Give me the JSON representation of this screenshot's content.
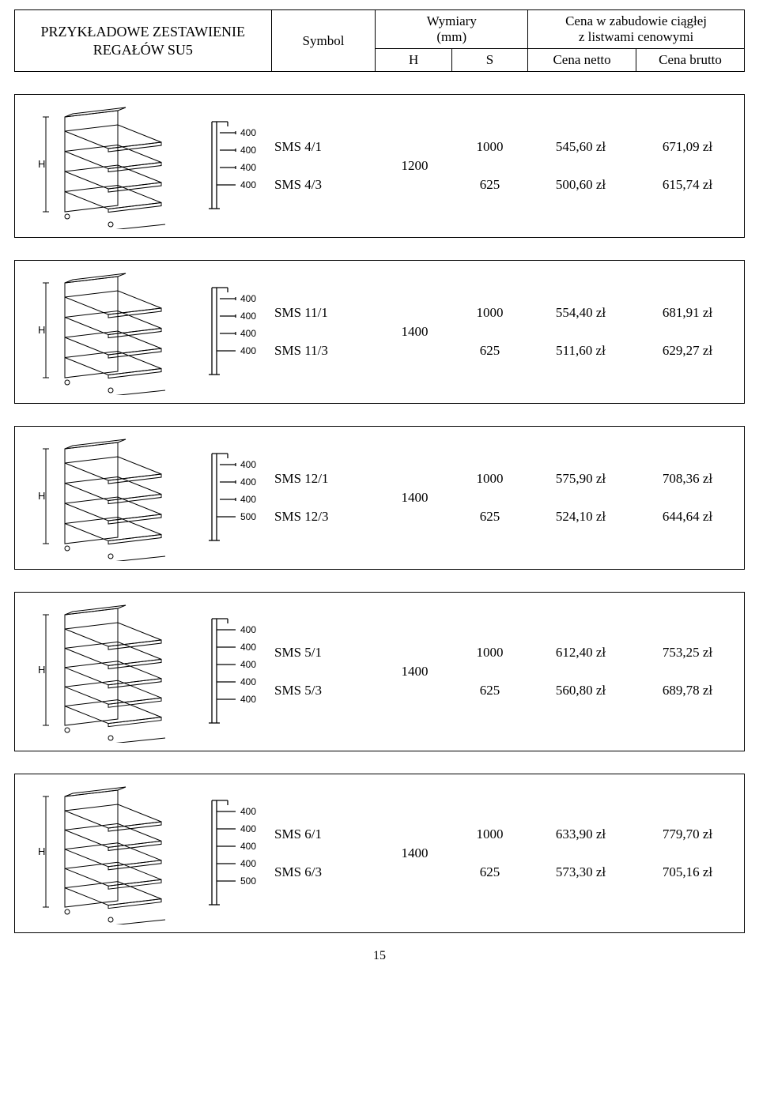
{
  "header": {
    "title_line1": "PRZYKŁADOWE ZESTAWIENIE",
    "title_line2": "REGAŁÓW SU5",
    "col_symbol": "Symbol",
    "col_dim": "Wymiary",
    "col_dim_unit": "(mm)",
    "col_price_line1": "Cena w zabudowie ciągłej",
    "col_price_line2": "z listwami cenowymi",
    "sub_H": "H",
    "sub_S": "S",
    "sub_netto": "Cena netto",
    "sub_brutto": "Cena brutto"
  },
  "rows": [
    {
      "shelves": 4,
      "schematic_labels": [
        "400",
        "400",
        "400",
        "400"
      ],
      "sym1": "SMS 4/1",
      "sym2": "SMS 4/3",
      "H": "1200",
      "S1": "1000",
      "S2": "625",
      "netto1": "545,60 zł",
      "netto2": "500,60 zł",
      "brutto1": "671,09 zł",
      "brutto2": "615,74 zł"
    },
    {
      "shelves": 4,
      "schematic_labels": [
        "400",
        "400",
        "400",
        "400"
      ],
      "sym1": "SMS 11/1",
      "sym2": "SMS 11/3",
      "H": "1400",
      "S1": "1000",
      "S2": "625",
      "netto1": "554,40 zł",
      "netto2": "511,60 zł",
      "brutto1": "681,91 zł",
      "brutto2": "629,27 zł"
    },
    {
      "shelves": 4,
      "schematic_labels": [
        "400",
        "400",
        "400",
        "500"
      ],
      "sym1": "SMS 12/1",
      "sym2": "SMS 12/3",
      "H": "1400",
      "S1": "1000",
      "S2": "625",
      "netto1": "575,90 zł",
      "netto2": "524,10 zł",
      "brutto1": "708,36 zł",
      "brutto2": "644,64 zł"
    },
    {
      "shelves": 5,
      "schematic_labels": [
        "400",
        "400",
        "400",
        "400",
        "400"
      ],
      "sym1": "SMS 5/1",
      "sym2": "SMS 5/3",
      "H": "1400",
      "S1": "1000",
      "S2": "625",
      "netto1": "612,40 zł",
      "netto2": "560,80 zł",
      "brutto1": "753,25 zł",
      "brutto2": "689,78 zł"
    },
    {
      "shelves": 5,
      "schematic_labels": [
        "400",
        "400",
        "400",
        "400",
        "500"
      ],
      "sym1": "SMS 6/1",
      "sym2": "SMS 6/3",
      "H": "1400",
      "S1": "1000",
      "S2": "625",
      "netto1": "633,90 zł",
      "netto2": "573,30 zł",
      "brutto1": "779,70 zł",
      "brutto2": "705,16 zł"
    }
  ],
  "page_number": "15",
  "colors": {
    "stroke": "#000000",
    "bg": "#ffffff",
    "schematic_font": "13px"
  }
}
